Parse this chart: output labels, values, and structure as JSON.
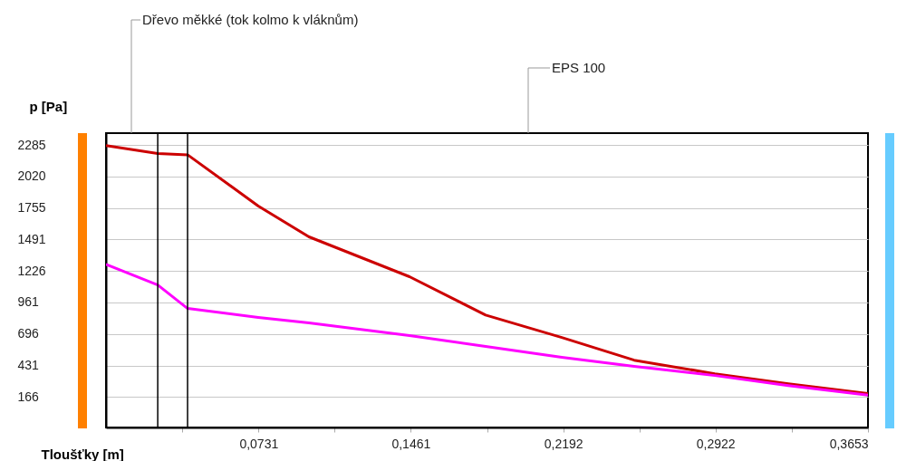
{
  "chart_data": {
    "type": "line",
    "xlabel": "Tloušťky [m]",
    "ylabel": "p [Pa]",
    "xlim": [
      0,
      0.3653
    ],
    "ylim": [
      -90,
      2385
    ],
    "xticks": [
      {
        "value": 0.0365,
        "label": null
      },
      {
        "value": 0.0731,
        "label": "0,0731"
      },
      {
        "value": 0.1096,
        "label": null
      },
      {
        "value": 0.1461,
        "label": "0,1461"
      },
      {
        "value": 0.1827,
        "label": null
      },
      {
        "value": 0.2192,
        "label": "0,2192"
      },
      {
        "value": 0.2557,
        "label": null
      },
      {
        "value": 0.2922,
        "label": "0,2922"
      },
      {
        "value": 0.3288,
        "label": null
      },
      {
        "value": 0.3653,
        "label": "0,3653"
      }
    ],
    "yticks": [
      166,
      431,
      696,
      961,
      1226,
      1491,
      1755,
      2020,
      2285
    ],
    "grid": "y",
    "line_style": "solid",
    "series": [
      {
        "color": "#cc0000",
        "x": [
          0,
          0.0248,
          0.0391,
          0.073,
          0.0973,
          0.1455,
          0.182,
          0.2185,
          0.2532,
          0.2919,
          0.3271,
          0.3653
        ],
        "values": [
          2280,
          2214,
          2203,
          1772,
          1513,
          1178,
          855,
          667,
          476,
          362,
          278,
          195
        ]
      },
      {
        "color": "#ff00ff",
        "x": [
          0,
          0.0248,
          0.0391,
          0.073,
          0.0973,
          0.1455,
          0.182,
          0.2185,
          0.2532,
          0.2919,
          0.3271,
          0.3653
        ],
        "values": [
          1282,
          1109,
          911,
          835,
          790,
          683,
          592,
          500,
          424,
          347,
          263,
          182
        ]
      }
    ],
    "ref_lines": [
      {
        "axis": "x",
        "value": 0.0248,
        "color": "#000000"
      },
      {
        "axis": "x",
        "value": 0.0391,
        "color": "#000000"
      }
    ],
    "annotations": [
      "Dřevo měkké (tok kolmo k vláknům)",
      "EPS 100"
    ]
  }
}
